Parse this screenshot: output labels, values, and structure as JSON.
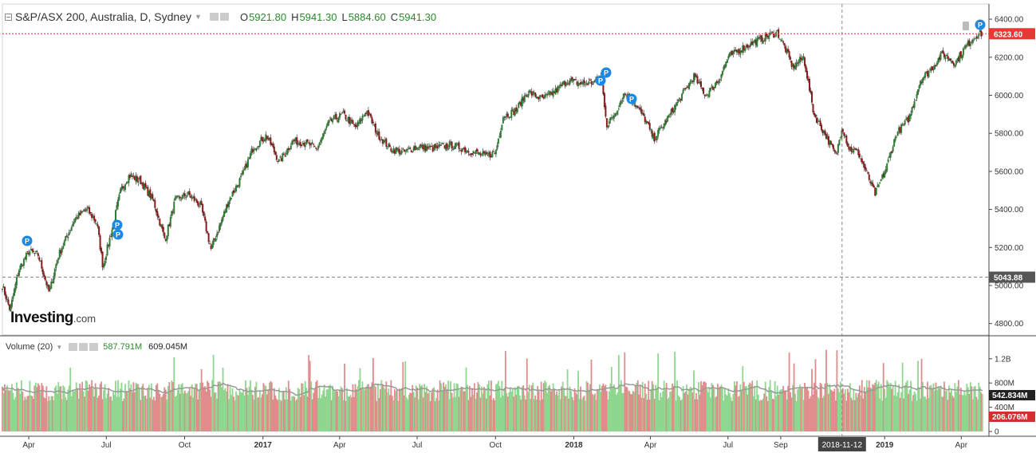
{
  "header": {
    "title": "S&P/ASX 200, Australia, D, Sydney",
    "open_label": "O",
    "open": "5921.80",
    "high_label": "H",
    "high": "5941.30",
    "low_label": "L",
    "low": "5884.60",
    "close_label": "C",
    "close": "5941.30"
  },
  "volume_header": {
    "title": "Volume (20)",
    "value1": "587.791M",
    "value2": "609.045M"
  },
  "logo": {
    "main": "Investing",
    "suffix": ".com"
  },
  "colors": {
    "up": "#2e7d32",
    "down": "#8b1a1a",
    "vol_up": "#8fd68f",
    "vol_down": "#e08c8c",
    "price_line": "#e53935",
    "ma": "#999999"
  },
  "chart_data": {
    "type": "candlestick",
    "price_axis": {
      "ticks": [
        "6400.00",
        "6200.00",
        "6000.00",
        "5800.00",
        "5600.00",
        "5400.00",
        "5200.00",
        "5000.00",
        "4800.00"
      ],
      "range": [
        4740,
        6480
      ]
    },
    "volume_axis": {
      "ticks": [
        "1.2B",
        "800M",
        "400M",
        "0"
      ]
    },
    "x_axis": {
      "ticks": [
        "Apr",
        "Jul",
        "Oct",
        "2017",
        "Apr",
        "Jul",
        "Oct",
        "2018",
        "Apr",
        "Jul",
        "Sep",
        "2019",
        "Apr"
      ],
      "crosshair_label": "2018-11-12"
    },
    "price_line": {
      "label": "6323.60",
      "value": 6323.6
    },
    "crosshair_price": {
      "label": "5043.88",
      "value": 5043.88
    },
    "volume_labels": {
      "ma": "542.834M",
      "current": "206.076M"
    },
    "markers": [
      "P",
      "P",
      "P",
      "P",
      "P",
      "P",
      "P"
    ],
    "key_closes": [
      [
        "2016-03-01",
        5000
      ],
      [
        "2016-03-10",
        4870
      ],
      [
        "2016-03-20",
        5080
      ],
      [
        "2016-04-01",
        5180
      ],
      [
        "2016-04-12",
        5160
      ],
      [
        "2016-04-25",
        4960
      ],
      [
        "2016-05-05",
        5150
      ],
      [
        "2016-05-25",
        5350
      ],
      [
        "2016-06-08",
        5400
      ],
      [
        "2016-06-20",
        5330
      ],
      [
        "2016-06-27",
        5100
      ],
      [
        "2016-07-08",
        5300
      ],
      [
        "2016-07-18",
        5500
      ],
      [
        "2016-07-28",
        5580
      ],
      [
        "2016-08-10",
        5550
      ],
      [
        "2016-08-25",
        5450
      ],
      [
        "2016-09-08",
        5240
      ],
      [
        "2016-09-20",
        5450
      ],
      [
        "2016-10-05",
        5480
      ],
      [
        "2016-10-20",
        5420
      ],
      [
        "2016-11-01",
        5190
      ],
      [
        "2016-11-10",
        5300
      ],
      [
        "2016-11-22",
        5450
      ],
      [
        "2016-12-08",
        5580
      ],
      [
        "2016-12-20",
        5720
      ],
      [
        "2017-01-05",
        5790
      ],
      [
        "2017-01-20",
        5650
      ],
      [
        "2017-02-05",
        5760
      ],
      [
        "2017-02-20",
        5750
      ],
      [
        "2017-03-05",
        5720
      ],
      [
        "2017-03-20",
        5860
      ],
      [
        "2017-04-05",
        5900
      ],
      [
        "2017-04-20",
        5830
      ],
      [
        "2017-05-03",
        5920
      ],
      [
        "2017-05-15",
        5800
      ],
      [
        "2017-05-30",
        5720
      ],
      [
        "2017-06-15",
        5700
      ],
      [
        "2017-07-01",
        5730
      ],
      [
        "2017-07-20",
        5720
      ],
      [
        "2017-08-10",
        5740
      ],
      [
        "2017-08-30",
        5710
      ],
      [
        "2017-09-20",
        5680
      ],
      [
        "2017-10-01",
        5700
      ],
      [
        "2017-10-10",
        5890
      ],
      [
        "2017-10-25",
        5920
      ],
      [
        "2017-11-08",
        6020
      ],
      [
        "2017-11-25",
        5980
      ],
      [
        "2017-12-10",
        6020
      ],
      [
        "2017-12-25",
        6080
      ],
      [
        "2018-01-10",
        6060
      ],
      [
        "2018-01-25",
        6070
      ],
      [
        "2018-02-02",
        6100
      ],
      [
        "2018-02-09",
        5840
      ],
      [
        "2018-02-20",
        5920
      ],
      [
        "2018-03-01",
        6010
      ],
      [
        "2018-03-10",
        5980
      ],
      [
        "2018-03-25",
        5880
      ],
      [
        "2018-04-05",
        5770
      ],
      [
        "2018-04-20",
        5870
      ],
      [
        "2018-05-08",
        6000
      ],
      [
        "2018-05-22",
        6100
      ],
      [
        "2018-06-05",
        6000
      ],
      [
        "2018-06-20",
        6080
      ],
      [
        "2018-07-01",
        6200
      ],
      [
        "2018-07-15",
        6240
      ],
      [
        "2018-08-01",
        6280
      ],
      [
        "2018-08-15",
        6310
      ],
      [
        "2018-08-28",
        6330
      ],
      [
        "2018-09-05",
        6260
      ],
      [
        "2018-09-15",
        6150
      ],
      [
        "2018-09-28",
        6200
      ],
      [
        "2018-10-10",
        5900
      ],
      [
        "2018-10-25",
        5780
      ],
      [
        "2018-11-05",
        5680
      ],
      [
        "2018-11-12",
        5840
      ],
      [
        "2018-11-20",
        5720
      ],
      [
        "2018-12-01",
        5700
      ],
      [
        "2018-12-10",
        5600
      ],
      [
        "2018-12-21",
        5480
      ],
      [
        "2019-01-03",
        5620
      ],
      [
        "2019-01-15",
        5800
      ],
      [
        "2019-01-30",
        5880
      ],
      [
        "2019-02-12",
        6080
      ],
      [
        "2019-02-25",
        6140
      ],
      [
        "2019-03-10",
        6220
      ],
      [
        "2019-03-25",
        6170
      ],
      [
        "2019-04-05",
        6250
      ],
      [
        "2019-04-20",
        6323.6
      ]
    ]
  }
}
